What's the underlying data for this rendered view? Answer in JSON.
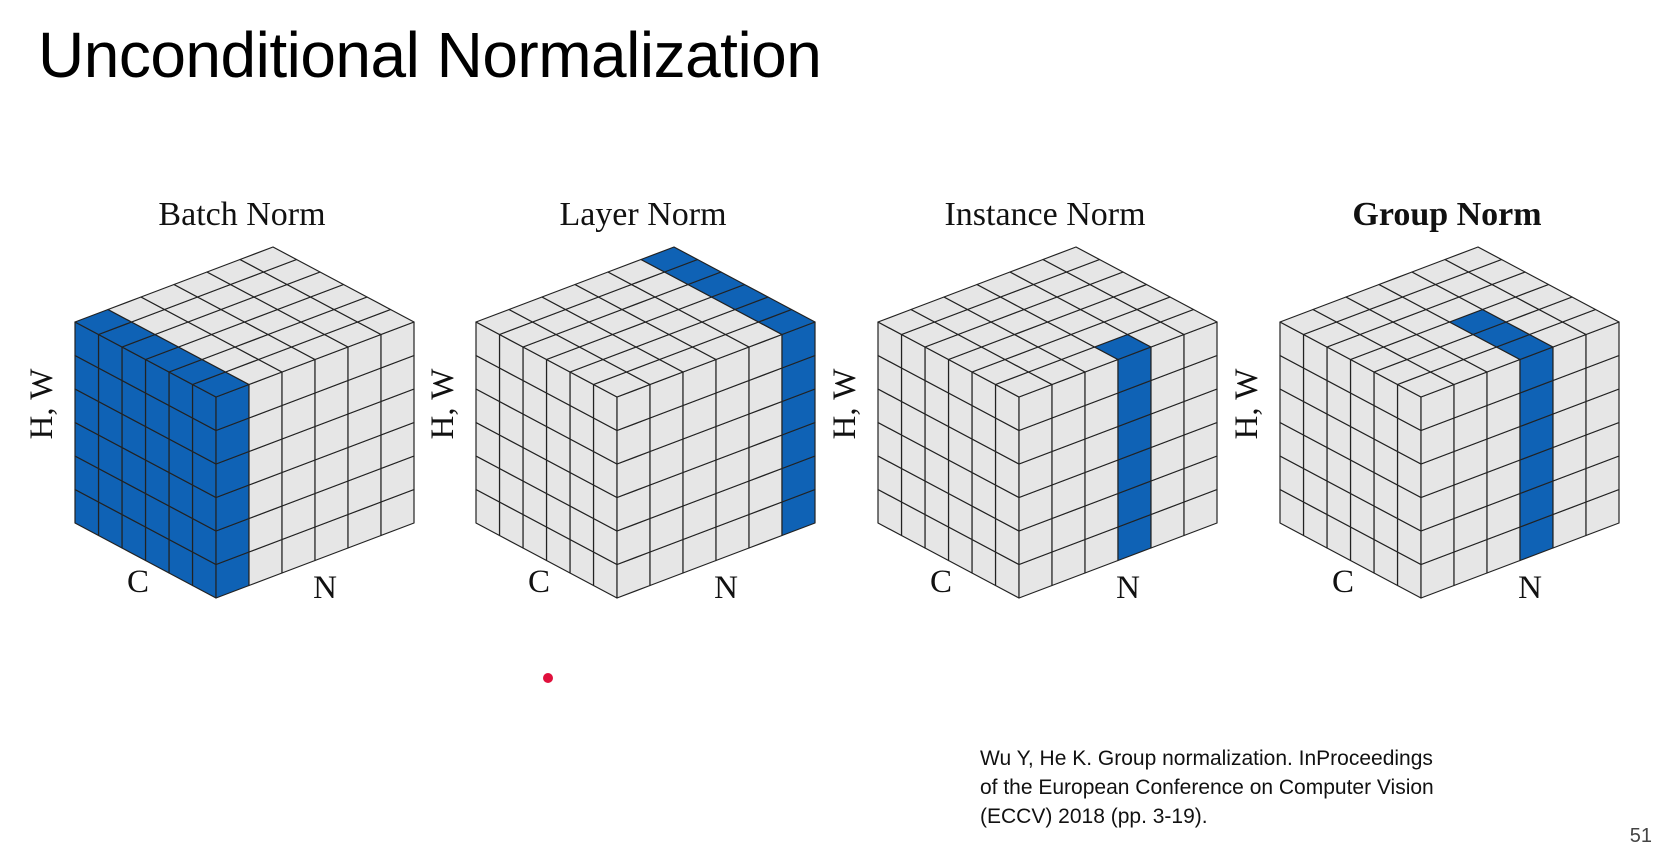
{
  "slide": {
    "title": "Unconditional Normalization",
    "page_number": "51"
  },
  "citation": {
    "lines": [
      "Wu Y, He K. Group normalization. InProceedings",
      "of the European Conference on Computer Vision",
      "(ECCV) 2018 (pp. 3-19)."
    ]
  },
  "colors": {
    "highlight": "#0f62b5",
    "cell": "#e6e6e6",
    "grid": "#222222",
    "pointer": "#e0103c"
  },
  "diagram": {
    "grid": {
      "n": 6,
      "c": 6,
      "hw": 6
    },
    "cubes": [
      {
        "name": "batch-norm",
        "title": "Batch Norm",
        "bold": false,
        "label_hw": "H, W",
        "label_c": "C",
        "label_n": "N",
        "highlight": {
          "c": [
            0,
            6
          ],
          "n": [
            0,
            1
          ],
          "hw": [
            0,
            6
          ]
        }
      },
      {
        "name": "layer-norm",
        "title": "Layer Norm",
        "bold": false,
        "label_hw": "H, W",
        "label_c": "C",
        "label_n": "N",
        "highlight": {
          "c": [
            0,
            6
          ],
          "n": [
            5,
            6
          ],
          "hw": [
            0,
            6
          ]
        }
      },
      {
        "name": "instance-norm",
        "title": "Instance Norm",
        "bold": false,
        "label_hw": "H, W",
        "label_c": "C",
        "label_n": "N",
        "highlight": {
          "c": [
            0,
            1
          ],
          "n": [
            3,
            4
          ],
          "hw": [
            0,
            6
          ]
        }
      },
      {
        "name": "group-norm",
        "title": "Group Norm",
        "bold": true,
        "label_hw": "H, W",
        "label_c": "C",
        "label_n": "N",
        "highlight": {
          "c": [
            0,
            3
          ],
          "n": [
            3,
            4
          ],
          "hw": [
            0,
            6
          ]
        }
      }
    ]
  }
}
